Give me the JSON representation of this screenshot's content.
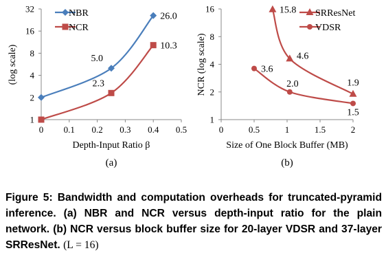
{
  "chart_data": [
    {
      "type": "line",
      "panel_label": "(a)",
      "xlabel": "Depth-Input Ratio β",
      "ylabel": "(log scale)",
      "x_ticks": [
        "0",
        "0.1",
        "0.2",
        "0.3",
        "0.4",
        "0.5"
      ],
      "y_ticks": [
        "1",
        "2",
        "4",
        "8",
        "16",
        "32"
      ],
      "xlim": [
        0,
        0.5
      ],
      "ylim": [
        1,
        32
      ],
      "y_scale": "log2",
      "legend_position": "top-left",
      "series": [
        {
          "name": "NBR",
          "color": "#4a7ebb",
          "marker": "diamond",
          "points": [
            [
              0,
              2.0
            ],
            [
              0.25,
              5.0
            ],
            [
              0.4,
              26.0
            ]
          ],
          "labels": [
            {
              "text": "5.0",
              "index": 1
            },
            {
              "text": "26.0",
              "index": 2
            }
          ]
        },
        {
          "name": "NCR",
          "color": "#be4b48",
          "marker": "square",
          "points": [
            [
              0,
              1.0
            ],
            [
              0.25,
              2.3
            ],
            [
              0.4,
              10.3
            ]
          ],
          "labels": [
            {
              "text": "2.3",
              "index": 1
            },
            {
              "text": "10.3",
              "index": 2
            }
          ]
        }
      ]
    },
    {
      "type": "line",
      "panel_label": "(b)",
      "xlabel": "Size of One Block Buffer (MB)",
      "ylabel": "NCR (log scale)",
      "x_ticks": [
        "0",
        "0.5",
        "1",
        "1.5",
        "2"
      ],
      "y_ticks": [
        "1",
        "2",
        "4",
        "8",
        "16"
      ],
      "xlim": [
        0,
        2
      ],
      "ylim": [
        1,
        16
      ],
      "y_scale": "log2",
      "legend_position": "top-right",
      "series": [
        {
          "name": "SRResNet",
          "color": "#be4b48",
          "marker": "triangle",
          "points": [
            [
              0.78,
              15.8
            ],
            [
              1.04,
              4.6
            ],
            [
              2.0,
              1.9
            ]
          ],
          "labels": [
            {
              "text": "15.8",
              "index": 0
            },
            {
              "text": "4.6",
              "index": 1
            },
            {
              "text": "1.9",
              "index": 2
            }
          ]
        },
        {
          "name": "VDSR",
          "color": "#be4b48",
          "marker": "circle",
          "points": [
            [
              0.5,
              3.6
            ],
            [
              1.04,
              2.0
            ],
            [
              2.0,
              1.5
            ]
          ],
          "labels": [
            {
              "text": "3.6",
              "index": 0
            },
            {
              "text": "2.0",
              "index": 1
            },
            {
              "text": "1.5",
              "index": 2
            }
          ]
        }
      ]
    }
  ],
  "caption": {
    "text": "Figure 5: Bandwidth and computation overheads for truncated-pyramid inference. (a) NBR and NCR versus depth-input ratio for the plain network. (b) NCR versus block buffer size for 20-layer VDSR and 37-layer SRResNet.",
    "math": "(L = 16)"
  }
}
